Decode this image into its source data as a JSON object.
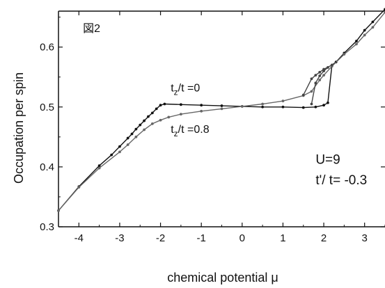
{
  "chart_data": {
    "type": "line",
    "title": "",
    "xlabel": "chemical potential  μ",
    "ylabel": "Occupation per spin",
    "xlim": [
      -4.5,
      3.5
    ],
    "ylim": [
      0.3,
      0.66
    ],
    "xticks": [
      -4,
      -3,
      -2,
      -1,
      0,
      1,
      2,
      3
    ],
    "yticks": [
      0.3,
      0.4,
      0.5,
      0.6
    ],
    "xtick_labels": [
      "-4",
      "-3",
      "-2",
      "-1",
      "0",
      "1",
      "2",
      "3"
    ],
    "ytick_labels": [
      "0.3",
      "0.4",
      "0.5",
      "0.6"
    ],
    "grid": false,
    "legend": "none",
    "series": [
      {
        "color": "#111111",
        "points": [
          [
            -4.5,
            0.327
          ],
          [
            -4.0,
            0.367
          ],
          [
            -3.5,
            0.402
          ],
          [
            -3.2,
            0.42
          ],
          [
            -3.0,
            0.434
          ],
          [
            -2.8,
            0.448
          ],
          [
            -2.7,
            0.455
          ],
          [
            -2.6,
            0.463
          ],
          [
            -2.5,
            0.47
          ],
          [
            -2.4,
            0.477
          ],
          [
            -2.3,
            0.484
          ],
          [
            -2.2,
            0.49
          ],
          [
            -2.1,
            0.497
          ],
          [
            -2.0,
            0.503
          ],
          [
            -1.9,
            0.505
          ],
          [
            -1.5,
            0.504
          ],
          [
            -1.0,
            0.503
          ],
          [
            -0.5,
            0.502
          ],
          [
            0.0,
            0.501
          ],
          [
            0.5,
            0.5
          ],
          [
            1.0,
            0.5
          ],
          [
            1.5,
            0.499
          ],
          [
            1.8,
            0.5
          ],
          [
            2.0,
            0.503
          ],
          [
            2.1,
            0.507
          ],
          [
            2.2,
            0.57
          ],
          [
            2.3,
            0.575
          ],
          [
            2.5,
            0.59
          ],
          [
            2.8,
            0.61
          ],
          [
            3.0,
            0.628
          ],
          [
            3.2,
            0.642
          ],
          [
            3.5,
            0.663
          ]
        ]
      },
      {
        "color": "#666666",
        "points": [
          [
            -4.5,
            0.327
          ],
          [
            -4.0,
            0.366
          ],
          [
            -3.5,
            0.398
          ],
          [
            -3.0,
            0.425
          ],
          [
            -2.8,
            0.437
          ],
          [
            -2.6,
            0.45
          ],
          [
            -2.4,
            0.462
          ],
          [
            -2.2,
            0.472
          ],
          [
            -2.0,
            0.478
          ],
          [
            -1.8,
            0.483
          ],
          [
            -1.5,
            0.488
          ],
          [
            -1.0,
            0.493
          ],
          [
            -0.5,
            0.497
          ],
          [
            0.0,
            0.501
          ],
          [
            0.5,
            0.505
          ],
          [
            1.0,
            0.51
          ],
          [
            1.5,
            0.519
          ],
          [
            1.7,
            0.526
          ],
          [
            1.9,
            0.545
          ],
          [
            2.0,
            0.553
          ],
          [
            2.2,
            0.568
          ],
          [
            2.5,
            0.588
          ],
          [
            2.8,
            0.605
          ],
          [
            3.0,
            0.62
          ],
          [
            3.2,
            0.633
          ],
          [
            3.5,
            0.658
          ]
        ]
      },
      {
        "color": "#444444",
        "points": [
          [
            1.5,
            0.52
          ],
          [
            1.7,
            0.547
          ],
          [
            1.8,
            0.553
          ],
          [
            1.9,
            0.558
          ],
          [
            2.0,
            0.563
          ],
          [
            2.2,
            0.57
          ]
        ]
      },
      {
        "color": "#444444",
        "points": [
          [
            1.7,
            0.505
          ],
          [
            1.8,
            0.54
          ],
          [
            1.9,
            0.552
          ],
          [
            2.0,
            0.56
          ],
          [
            2.1,
            0.566
          ]
        ]
      }
    ],
    "annotations": [
      {
        "text": "図2",
        "x": -3.9,
        "y": 0.625,
        "style": "normal"
      },
      {
        "text": "t",
        "sub": "z",
        "rest": "/t =0",
        "x": -1.75,
        "y": 0.526
      },
      {
        "text": "t",
        "sub": "z",
        "rest": "/t =0.8",
        "x": -1.75,
        "y": 0.457
      },
      {
        "text": "U=9",
        "x": 1.8,
        "y": 0.405,
        "style": "big"
      },
      {
        "text": "t'/ t= -0.3",
        "x": 1.8,
        "y": 0.371,
        "style": "big"
      }
    ]
  }
}
